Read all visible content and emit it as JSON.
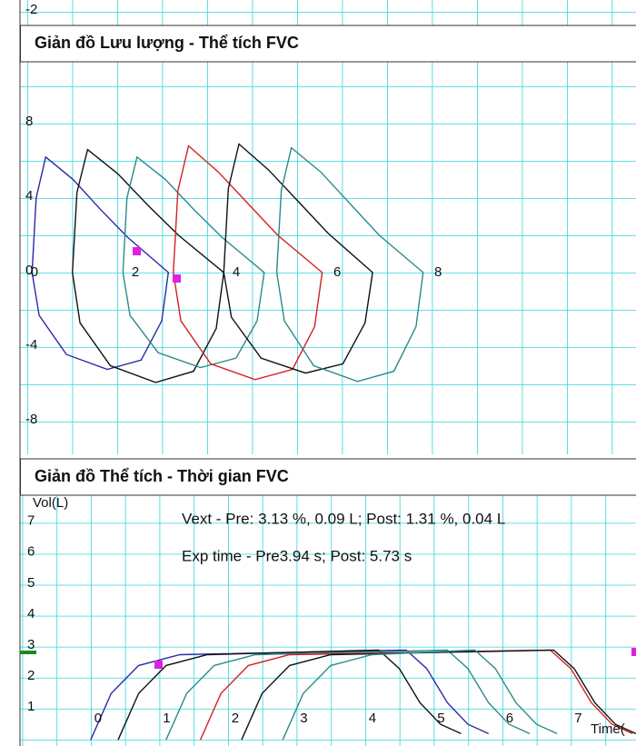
{
  "chart_data": [
    {
      "type": "line",
      "title": "Giản đồ Lưu lượng - Thể tích FVC",
      "annotations": [
        "-2"
      ],
      "xlim": [
        -0.14,
        12.07
      ],
      "ylim": [
        -9.76,
        14.63
      ],
      "xticks": [
        0,
        2,
        4,
        6,
        8
      ],
      "yticks": [
        -8,
        -4,
        0,
        4,
        8
      ],
      "series": [
        {
          "color": "#2a2aa8",
          "x": [
            0.1,
            0.18,
            0.37,
            0.91,
            1.45,
            1.99,
            2.8,
            2.67,
            2.26,
            1.59,
            0.78,
            0.24,
            0.1
          ],
          "values": [
            0,
            4.0,
            6.2,
            5.0,
            3.4,
            1.9,
            0,
            -2.6,
            -4.7,
            -5.2,
            -4.4,
            -2.3,
            0
          ]
        },
        {
          "color": "#111111",
          "x": [
            0.9,
            0.99,
            1.2,
            1.8,
            2.4,
            3.0,
            3.9,
            3.75,
            3.3,
            2.55,
            1.65,
            1.05,
            0.9
          ],
          "values": [
            0,
            4.3,
            6.6,
            5.3,
            3.6,
            2.0,
            0,
            -3.0,
            -5.3,
            -5.9,
            -5.0,
            -2.7,
            0
          ]
        },
        {
          "color": "#2a8a8a",
          "x": [
            1.9,
            1.98,
            2.18,
            2.74,
            3.3,
            3.86,
            4.7,
            4.56,
            4.14,
            3.44,
            2.6,
            2.04,
            1.9
          ],
          "values": [
            0,
            4.0,
            6.2,
            5.0,
            3.4,
            1.9,
            0,
            -2.6,
            -4.6,
            -5.1,
            -4.3,
            -2.3,
            0
          ]
        },
        {
          "color": "#d42020",
          "x": [
            2.9,
            2.99,
            3.2,
            3.79,
            4.38,
            4.97,
            5.85,
            5.7,
            5.26,
            4.52,
            3.64,
            3.05,
            2.9
          ],
          "values": [
            0,
            4.4,
            6.8,
            5.4,
            3.7,
            2.0,
            0,
            -2.9,
            -5.2,
            -5.75,
            -4.9,
            -2.6,
            0
          ]
        },
        {
          "color": "#111111",
          "x": [
            3.9,
            3.99,
            4.2,
            4.79,
            5.38,
            5.97,
            6.85,
            6.7,
            6.26,
            5.52,
            4.64,
            4.05,
            3.9
          ],
          "values": [
            0,
            4.5,
            6.9,
            5.5,
            3.8,
            2.1,
            0,
            -2.7,
            -4.9,
            -5.4,
            -4.6,
            -2.4,
            0
          ]
        },
        {
          "color": "#2a8a8a",
          "x": [
            4.95,
            5.04,
            5.24,
            5.82,
            6.4,
            6.98,
            7.85,
            7.71,
            7.27,
            6.55,
            5.68,
            5.1,
            4.95
          ],
          "values": [
            0,
            4.4,
            6.7,
            5.4,
            3.7,
            2.0,
            0,
            -2.9,
            -5.3,
            -5.85,
            -5.0,
            -2.6,
            0
          ]
        }
      ]
    },
    {
      "type": "line",
      "title": "Giản đồ Thể tích - Thời gian FVC",
      "ylabel": "Vol(L)",
      "xlabel": "Time(",
      "annotations": [
        "Vext - Pre: 3.13 %,  0.09 L; Post: 1.31 %,  0.04 L",
        "Exp time - Pre3.94 s; Post: 5.73 s"
      ],
      "xlim": [
        -1.03,
        7.95
      ],
      "ylim": [
        -0.2,
        7.9
      ],
      "xticks": [
        0,
        1,
        2,
        3,
        4,
        5,
        6,
        7
      ],
      "yticks": [
        1,
        2,
        3,
        4,
        5,
        6,
        7
      ],
      "series": [
        {
          "color": "#2a2aa8",
          "x": [
            0,
            0.3,
            0.7,
            1.3,
            4.6,
            4.9,
            5.2,
            5.5,
            5.8
          ],
          "values": [
            0,
            1.5,
            2.4,
            2.75,
            2.9,
            2.3,
            1.2,
            0.5,
            0.2
          ]
        },
        {
          "color": "#111111",
          "x": [
            0.4,
            0.7,
            1.1,
            1.7,
            4.2,
            4.5,
            4.8,
            5.1,
            5.4
          ],
          "values": [
            0,
            1.5,
            2.4,
            2.75,
            2.9,
            2.3,
            1.2,
            0.5,
            0.2
          ]
        },
        {
          "color": "#2a8a8a",
          "x": [
            1.1,
            1.4,
            1.8,
            2.4,
            5.2,
            5.5,
            5.8,
            6.1,
            6.4
          ],
          "values": [
            0,
            1.5,
            2.4,
            2.75,
            2.9,
            2.3,
            1.2,
            0.5,
            0.2
          ]
        },
        {
          "color": "#d42020",
          "x": [
            1.6,
            1.9,
            2.3,
            2.9,
            6.7,
            7.0,
            7.3,
            7.6,
            7.9
          ],
          "values": [
            0,
            1.5,
            2.4,
            2.75,
            2.9,
            2.3,
            1.2,
            0.5,
            0.2
          ]
        },
        {
          "color": "#111111",
          "x": [
            2.2,
            2.5,
            2.9,
            3.5,
            6.75,
            7.05,
            7.35,
            7.65,
            7.95
          ],
          "values": [
            0,
            1.5,
            2.4,
            2.75,
            2.9,
            2.3,
            1.2,
            0.5,
            0.2
          ]
        },
        {
          "color": "#2a8a8a",
          "x": [
            2.8,
            3.1,
            3.5,
            4.1,
            5.6,
            5.9,
            6.2,
            6.5,
            6.8
          ],
          "values": [
            0,
            1.5,
            2.4,
            2.75,
            2.9,
            2.3,
            1.2,
            0.5,
            0.2
          ]
        }
      ]
    }
  ]
}
